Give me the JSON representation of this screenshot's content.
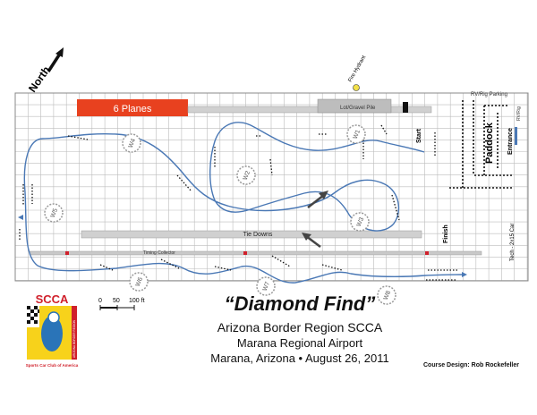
{
  "map": {
    "north_label": "North",
    "banner": {
      "text": "6 Planes",
      "color": "#e8411f"
    },
    "labels": {
      "hangar": "Lot/Gravel Pile",
      "fire_hydrant": "Fire Hydrant",
      "rv_parking": "RV/Rig Parking",
      "paddock": "Paddock",
      "entrance": "Entrance",
      "start": "Start",
      "finish": "Finish",
      "tie_downs": "Tie Downs",
      "timing": "Timing Collector",
      "tech": "Tech - 2x15 Car",
      "rv_side": "RV/Rig"
    },
    "waypoints": [
      "W1",
      "W2",
      "W3",
      "W4",
      "W5",
      "W6",
      "W7",
      "W8"
    ],
    "scale": {
      "ticks": [
        "0",
        "50",
        "100 ft"
      ]
    },
    "colors": {
      "course": "#4a78b5",
      "grid": "#bcbcbc",
      "cone": "#111111",
      "banner": "#e8411f",
      "hydrant": "#f3e14a"
    }
  },
  "title": {
    "event": "“Diamond Find”",
    "organizer": "Arizona Border Region SCCA",
    "venue": "Marana Regional Airport",
    "location_date": "Marana, Arizona • August 26, 2011",
    "credit": "Course Design:  Rob Rockefeller"
  },
  "logo": {
    "text": "SCCA",
    "subtext": "Sports Car Club of America",
    "ring_text": "ARIZONA BORDER REGION",
    "colors": {
      "red": "#d0202b",
      "yellow": "#f7d21b",
      "blue": "#2a74b8"
    }
  }
}
